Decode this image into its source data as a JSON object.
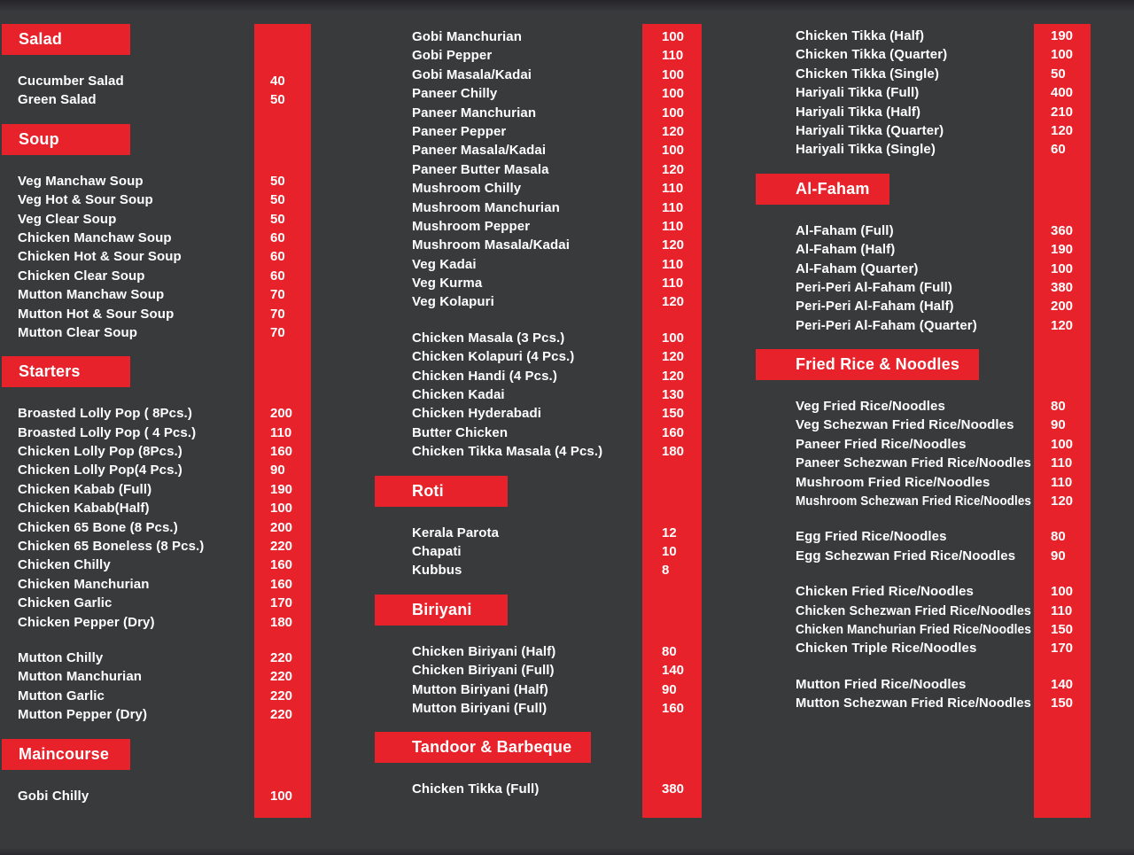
{
  "theme": {
    "background": "#393a3c",
    "accent": "#e8222b",
    "text_primary": "#ffffff"
  },
  "menu": {
    "columns": [
      {
        "blocks": [
          {
            "type": "header",
            "label": "Salad"
          },
          {
            "type": "group",
            "items": [
              {
                "name": "Cucumber Salad",
                "price": "40"
              },
              {
                "name": "Green Salad",
                "price": "50"
              }
            ]
          },
          {
            "type": "header",
            "label": "Soup"
          },
          {
            "type": "group",
            "items": [
              {
                "name": "Veg Manchaw Soup",
                "price": "50"
              },
              {
                "name": "Veg Hot & Sour Soup",
                "price": "50"
              },
              {
                "name": "Veg Clear Soup",
                "price": "50"
              },
              {
                "name": "Chicken Manchaw Soup",
                "price": "60"
              },
              {
                "name": "Chicken Hot & Sour Soup",
                "price": "60"
              },
              {
                "name": "Chicken Clear Soup",
                "price": "60"
              },
              {
                "name": "Mutton Manchaw Soup",
                "price": "70"
              },
              {
                "name": "Mutton Hot & Sour Soup",
                "price": "70"
              },
              {
                "name": "Mutton Clear Soup",
                "price": "70"
              }
            ]
          },
          {
            "type": "header",
            "label": "Starters"
          },
          {
            "type": "group",
            "items": [
              {
                "name": "Broasted Lolly Pop ( 8Pcs.)",
                "price": "200"
              },
              {
                "name": "Broasted  Lolly Pop ( 4 Pcs.)",
                "price": "110"
              },
              {
                "name": "Chicken Lolly Pop (8Pcs.)",
                "price": "160"
              },
              {
                "name": "Chicken Lolly Pop(4 Pcs.)",
                "price": "90"
              },
              {
                "name": "Chicken Kabab (Full)",
                "price": "190"
              },
              {
                "name": "Chicken Kabab(Half)",
                "price": "100"
              },
              {
                "name": "Chicken 65 Bone (8 Pcs.)",
                "price": "200"
              },
              {
                "name": "Chicken 65 Boneless (8 Pcs.)",
                "price": "220"
              },
              {
                "name": "Chicken Chilly",
                "price": "160"
              },
              {
                "name": "Chicken Manchurian",
                "price": "160"
              },
              {
                "name": "Chicken Garlic",
                "price": "170"
              },
              {
                "name": "Chicken Pepper (Dry)",
                "price": "180"
              }
            ]
          },
          {
            "type": "group",
            "items": [
              {
                "name": "Mutton Chilly",
                "price": "220"
              },
              {
                "name": "Mutton Manchurian",
                "price": "220"
              },
              {
                "name": "Mutton Garlic",
                "price": "220"
              },
              {
                "name": "Mutton Pepper (Dry)",
                "price": "220"
              }
            ]
          },
          {
            "type": "header",
            "label": "Maincourse"
          },
          {
            "type": "group",
            "items": [
              {
                "name": "Gobi Chilly",
                "price": "100"
              }
            ]
          }
        ]
      },
      {
        "blocks": [
          {
            "type": "group",
            "items": [
              {
                "name": "Gobi Manchurian",
                "price": "100"
              },
              {
                "name": "Gobi Pepper",
                "price": "110"
              },
              {
                "name": "Gobi Masala/Kadai",
                "price": "100"
              },
              {
                "name": "Paneer Chilly",
                "price": "100"
              },
              {
                "name": "Paneer Manchurian",
                "price": "100"
              },
              {
                "name": "Paneer Pepper",
                "price": "120"
              },
              {
                "name": "Paneer Masala/Kadai",
                "price": "100"
              },
              {
                "name": "Paneer Butter Masala",
                "price": "120"
              },
              {
                "name": "Mushroom Chilly",
                "price": "110"
              },
              {
                "name": "Mushroom Manchurian",
                "price": "110"
              },
              {
                "name": "Mushroom Pepper",
                "price": "110"
              },
              {
                "name": "Mushroom Masala/Kadai",
                "price": "120"
              },
              {
                "name": "Veg Kadai",
                "price": "110"
              },
              {
                "name": "Veg Kurma",
                "price": "110"
              },
              {
                "name": "Veg Kolapuri",
                "price": "120"
              }
            ]
          },
          {
            "type": "group",
            "items": [
              {
                "name": "Chicken Masala (3 Pcs.)",
                "price": "100"
              },
              {
                "name": "Chicken Kolapuri (4 Pcs.)",
                "price": "120"
              },
              {
                "name": "Chicken Handi (4 Pcs.)",
                "price": "120"
              },
              {
                "name": "Chicken Kadai",
                "price": "130"
              },
              {
                "name": "Chicken Hyderabadi",
                "price": "150"
              },
              {
                "name": "Butter Chicken",
                "price": "160"
              },
              {
                "name": "Chicken Tikka Masala (4 Pcs.)",
                "price": "180"
              }
            ]
          },
          {
            "type": "header",
            "label": "Roti"
          },
          {
            "type": "group",
            "items": [
              {
                "name": "Kerala Parota",
                "price": "12"
              },
              {
                "name": "Chapati",
                "price": "10"
              },
              {
                "name": "Kubbus",
                "price": "8"
              }
            ]
          },
          {
            "type": "header",
            "label": "Biriyani"
          },
          {
            "type": "group",
            "items": [
              {
                "name": "Chicken Biriyani (Half)",
                "price": "80"
              },
              {
                "name": "Chicken Biriyani (Full)",
                "price": "140"
              },
              {
                "name": "Mutton Biriyani (Half)",
                "price": "90"
              },
              {
                "name": "Mutton Biriyani (Full)",
                "price": "160"
              }
            ]
          },
          {
            "type": "header",
            "label": "Tandoor & Barbeque"
          },
          {
            "type": "group",
            "items": [
              {
                "name": "Chicken Tikka (Full)",
                "price": "380"
              }
            ]
          }
        ]
      },
      {
        "blocks": [
          {
            "type": "group",
            "items": [
              {
                "name": "Chicken Tikka (Half)",
                "price": "190"
              },
              {
                "name": "Chicken Tikka (Quarter)",
                "price": "100"
              },
              {
                "name": "Chicken Tikka (Single)",
                "price": "50"
              },
              {
                "name": "Hariyali Tikka (Full)",
                "price": "400"
              },
              {
                "name": "Hariyali Tikka (Half)",
                "price": "210"
              },
              {
                "name": "Hariyali Tikka (Quarter)",
                "price": "120"
              },
              {
                "name": "Hariyali Tikka (Single)",
                "price": "60"
              }
            ]
          },
          {
            "type": "header",
            "label": "Al-Faham"
          },
          {
            "type": "group",
            "items": [
              {
                "name": "Al-Faham (Full)",
                "price": "360"
              },
              {
                "name": "Al-Faham (Half)",
                "price": "190"
              },
              {
                "name": "Al-Faham (Quarter)",
                "price": "100"
              },
              {
                "name": "Peri-Peri Al-Faham (Full)",
                "price": "380"
              },
              {
                "name": "Peri-Peri Al-Faham (Half)",
                "price": "200"
              },
              {
                "name": "Peri-Peri Al-Faham (Quarter)",
                "price": "120"
              }
            ]
          },
          {
            "type": "header",
            "label": "Fried Rice & Noodles"
          },
          {
            "type": "group",
            "items": [
              {
                "name": "Veg Fried Rice/Noodles",
                "price": "80"
              },
              {
                "name": "Veg Schezwan Fried Rice/Noodles",
                "price": "90"
              },
              {
                "name": "Paneer Fried Rice/Noodles",
                "price": "100"
              },
              {
                "name": "Paneer Schezwan Fried Rice/Noodles",
                "price": "110"
              },
              {
                "name": "Mushroom Fried Rice/Noodles",
                "price": "110"
              },
              {
                "name": "Mushroom Schezwan Fried Rice/Noodles",
                "price": "120"
              }
            ]
          },
          {
            "type": "group",
            "items": [
              {
                "name": "Egg Fried Rice/Noodles",
                "price": "80"
              },
              {
                "name": "Egg Schezwan Fried Rice/Noodles",
                "price": "90"
              }
            ]
          },
          {
            "type": "group",
            "items": [
              {
                "name": "Chicken Fried Rice/Noodles",
                "price": "100"
              },
              {
                "name": "Chicken Schezwan Fried Rice/Noodles",
                "price": "110"
              },
              {
                "name": "Chicken Manchurian Fried Rice/Noodles",
                "price": "150"
              },
              {
                "name": "Chicken Triple Rice/Noodles",
                "price": "170"
              }
            ]
          },
          {
            "type": "group",
            "items": [
              {
                "name": "Mutton Fried Rice/Noodles",
                "price": "140"
              },
              {
                "name": "Mutton Schezwan Fried Rice/Noodles",
                "price": "150"
              }
            ]
          }
        ]
      }
    ]
  }
}
